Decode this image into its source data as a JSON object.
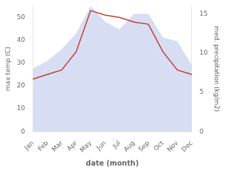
{
  "chart_data": {
    "type": "line",
    "x_label": "date (month)",
    "y_label": "max temp (C)",
    "y2_label": "med. precipitation (kg/m2)",
    "categories": [
      "Jan",
      "Feb",
      "Mar",
      "Apr",
      "May",
      "Jun",
      "Jul",
      "Aug",
      "Sep",
      "Oct",
      "Nov",
      "Dec"
    ],
    "series": [
      {
        "type": "area",
        "axis": "y2",
        "color": "#b0bee8",
        "values": [
          8.0,
          9.0,
          10.5,
          12.5,
          16.0,
          14.0,
          13.0,
          15.0,
          15.0,
          12.0,
          11.5,
          8.5
        ]
      },
      {
        "type": "line",
        "color": "#c0392b",
        "values": [
          23,
          25,
          27,
          35,
          53,
          51,
          50,
          48,
          47,
          35,
          27,
          25
        ]
      }
    ],
    "ylim": [
      0,
      55
    ],
    "yticks": [
      0,
      10,
      20,
      30,
      40,
      50
    ],
    "y2lim": [
      0,
      16
    ],
    "y2ticks": [
      0,
      5,
      10,
      15
    ],
    "grid": false
  }
}
